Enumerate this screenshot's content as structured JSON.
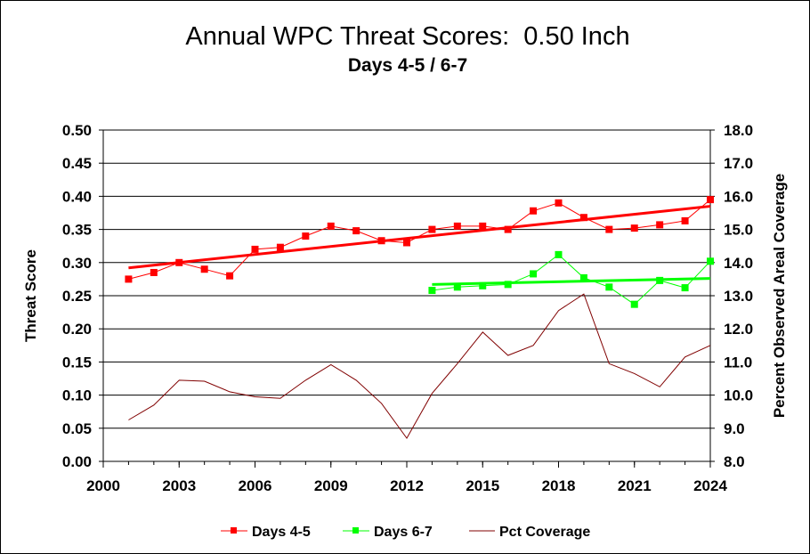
{
  "chart_data": {
    "type": "line",
    "title": "Annual WPC Threat Scores:  0.50 Inch",
    "subtitle": "Days 4-5 / 6-7",
    "ylabel": "Threat Score",
    "y2label": "Percent Observed Areal Coverage",
    "ylim": [
      0,
      0.5
    ],
    "y2lim": [
      8.0,
      18.0
    ],
    "xlim": [
      2000,
      2024
    ],
    "x_ticks": [
      "2000",
      "2003",
      "2006",
      "2009",
      "2012",
      "2015",
      "2018",
      "2021",
      "2024"
    ],
    "y_ticks": [
      "0.00",
      "0.05",
      "0.10",
      "0.15",
      "0.20",
      "0.25",
      "0.30",
      "0.35",
      "0.40",
      "0.45",
      "0.50"
    ],
    "y2_ticks": [
      "8.0",
      "9.0",
      "10.0",
      "11.0",
      "12.0",
      "13.0",
      "14.0",
      "15.0",
      "16.0",
      "17.0",
      "18.0"
    ],
    "grid": "horizontal",
    "legend_position": "bottom",
    "series": [
      {
        "name": "Days 4-5",
        "color": "#ff0000",
        "marker": "square",
        "axis": "left",
        "x": [
          2001,
          2002,
          2003,
          2004,
          2005,
          2006,
          2007,
          2008,
          2009,
          2010,
          2011,
          2012,
          2013,
          2014,
          2015,
          2016,
          2017,
          2018,
          2019,
          2020,
          2021,
          2022,
          2023,
          2024
        ],
        "values": [
          0.275,
          0.285,
          0.3,
          0.29,
          0.28,
          0.32,
          0.323,
          0.34,
          0.355,
          0.348,
          0.333,
          0.33,
          0.35,
          0.355,
          0.355,
          0.35,
          0.378,
          0.39,
          0.368,
          0.35,
          0.352,
          0.357,
          0.363,
          0.395
        ],
        "trend": [
          0.292,
          0.385
        ]
      },
      {
        "name": "Days 6-7",
        "color": "#00ff00",
        "marker": "square",
        "axis": "left",
        "x": [
          2013,
          2014,
          2015,
          2016,
          2017,
          2018,
          2019,
          2020,
          2021,
          2022,
          2023,
          2024
        ],
        "values": [
          0.258,
          0.263,
          0.265,
          0.267,
          0.283,
          0.312,
          0.277,
          0.263,
          0.237,
          0.273,
          0.262,
          0.302
        ],
        "trend": [
          0.267,
          0.276
        ]
      },
      {
        "name": "Pct Coverage",
        "color": "#800000",
        "marker": "none",
        "axis": "right",
        "x": [
          2001,
          2002,
          2003,
          2004,
          2005,
          2006,
          2007,
          2008,
          2009,
          2010,
          2011,
          2012,
          2013,
          2014,
          2015,
          2016,
          2017,
          2018,
          2019,
          2020,
          2021,
          2022,
          2023,
          2024
        ],
        "values": [
          9.25,
          9.7,
          10.45,
          10.42,
          10.1,
          9.95,
          9.9,
          10.45,
          10.92,
          10.45,
          9.75,
          8.7,
          10.05,
          10.95,
          11.9,
          11.2,
          11.5,
          12.55,
          13.05,
          10.95,
          10.65,
          10.25,
          11.15,
          11.5
        ]
      }
    ]
  }
}
